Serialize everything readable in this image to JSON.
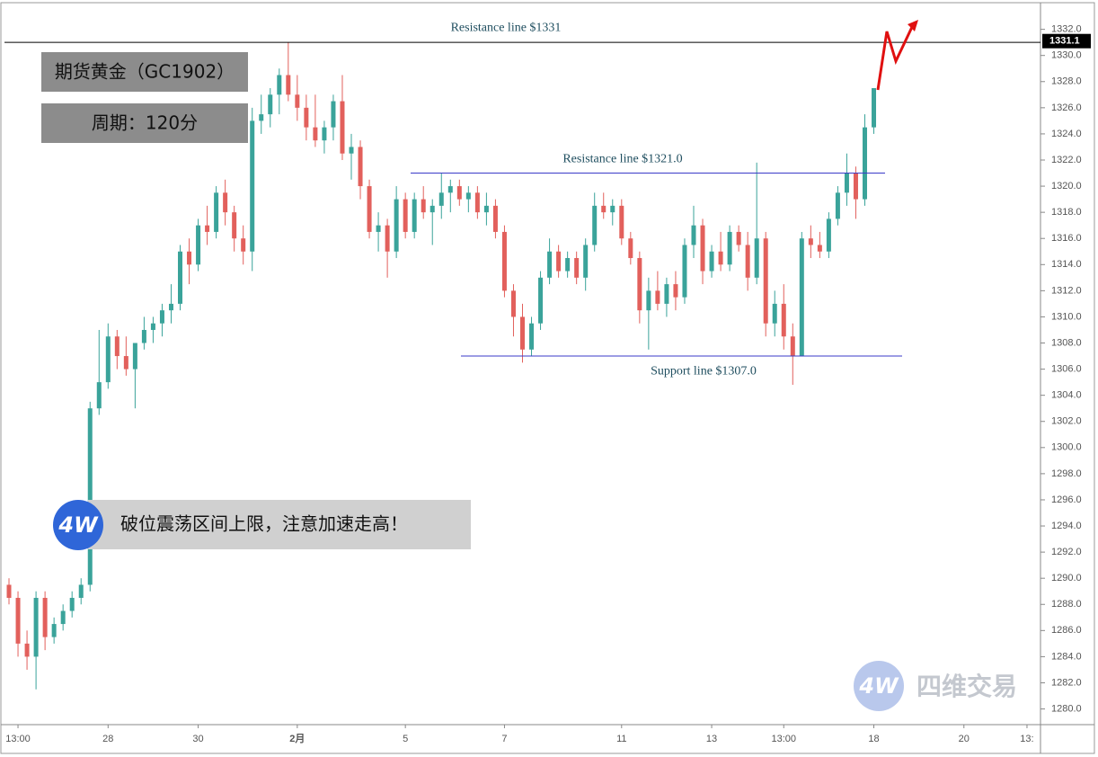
{
  "title": "期货黄金（GC1902）",
  "subtitle": "周期：120分",
  "annotation": "破位震荡区间上限，注意加速走高！",
  "logo": "4W",
  "watermark": "四维交易",
  "chart_data": {
    "type": "candlestick",
    "categories": [
      null,
      "13:00",
      null,
      null,
      null,
      null,
      null,
      null,
      null,
      null,
      null,
      "28",
      null,
      null,
      null,
      null,
      null,
      null,
      null,
      null,
      null,
      "30",
      null,
      null,
      null,
      null,
      null,
      null,
      null,
      null,
      null,
      null,
      "2月",
      null,
      null,
      null,
      null,
      null,
      null,
      null,
      null,
      null,
      null,
      null,
      "5",
      null,
      null,
      null,
      null,
      null,
      null,
      null,
      null,
      null,
      null,
      "7",
      null,
      null,
      null,
      null,
      null,
      null,
      null,
      null,
      null,
      null,
      null,
      null,
      "11",
      null,
      null,
      null,
      null,
      null,
      null,
      null,
      null,
      null,
      "13",
      null,
      null,
      null,
      null,
      null,
      null,
      null,
      "13:00",
      null,
      null,
      null,
      null,
      null,
      null,
      null,
      null,
      null,
      "18",
      null,
      null,
      null,
      null,
      null,
      null,
      null,
      null,
      null,
      "20",
      null,
      null,
      null,
      null,
      null,
      null,
      "13:",
      null
    ],
    "open": [
      1289.5,
      1288.5,
      1285,
      1284,
      1288.5,
      1285.5,
      1286.5,
      1287.5,
      1288.5,
      1289.5,
      1303,
      1305,
      1308.5,
      1307,
      1306,
      1308,
      1309,
      1309.5,
      1310.5,
      1311,
      1315,
      1314,
      1317,
      1316.5,
      1319.5,
      1318,
      1316,
      1315,
      1325,
      1325.5,
      1327,
      1328.5,
      1327,
      1326,
      1324.5,
      1323.5,
      1324.5,
      1326.5,
      1322.5,
      1323,
      1320,
      1316.5,
      1317,
      1315,
      1319,
      1316.5,
      1319,
      1318,
      1318.5,
      1319.5,
      1320,
      1319,
      1319.5,
      1318,
      1318.5,
      1316.5,
      1312,
      1310,
      1307.5,
      1309.5,
      1313,
      1315,
      1313.5,
      1314.5,
      1313,
      1315.5,
      1318.5,
      1318,
      1318.5,
      1316,
      1314.5,
      1310.5,
      1312,
      1311,
      1312.5,
      1311.5,
      1315.5,
      1317,
      1313.5,
      1315,
      1314,
      1316.5,
      1315.5,
      1313,
      1316,
      1309.5,
      1311,
      1308.5,
      1307,
      1316,
      1315.5,
      1315,
      1317.5,
      1319.5,
      1321,
      1319,
      1324.5,
      null,
      null,
      null,
      null,
      null,
      null,
      null,
      null,
      null,
      null,
      null,
      null,
      null,
      null,
      null,
      null,
      null,
      null
    ],
    "high": [
      1290,
      1289,
      1286,
      1289,
      1289,
      1287,
      1288,
      1289,
      1290,
      1303.5,
      1309,
      1309.5,
      1309,
      1308.5,
      1308,
      1310,
      1310,
      1311,
      1312.5,
      1315.5,
      1316,
      1317.5,
      1318.5,
      1320,
      1320.5,
      1318.5,
      1317,
      1326,
      1327,
      1327.5,
      1329,
      1331,
      1328.5,
      1327,
      1327,
      1325,
      1327,
      1328.5,
      1324,
      1323.5,
      1320.5,
      1318,
      1317.5,
      1320,
      1319.5,
      1319.5,
      1320,
      1319,
      1321,
      1320.5,
      1320.5,
      1320,
      1320,
      1319.5,
      1319,
      1317,
      1312.5,
      1311,
      1310,
      1313.5,
      1316,
      1315.5,
      1315,
      1315,
      1316,
      1319.5,
      1319.5,
      1319,
      1319,
      1316.5,
      1315,
      1313,
      1313.5,
      1313,
      1313.5,
      1316,
      1318.5,
      1317.5,
      1315.5,
      1316.5,
      1317,
      1317,
      1316.5,
      1321.8,
      1316.5,
      1312,
      1312.5,
      1309.5,
      1316.5,
      1317,
      1316.5,
      1318,
      1320,
      1322.5,
      1321.5,
      1325.5,
      1327.5,
      null,
      null,
      null,
      null,
      null,
      null,
      null,
      null,
      null,
      null,
      null,
      null,
      null,
      null,
      null,
      null,
      null,
      null
    ],
    "low": [
      1288,
      1284,
      1283,
      1281.5,
      1284.5,
      1285,
      1286,
      1287,
      1288,
      1289,
      1302.5,
      1304.5,
      1306,
      1305.5,
      1303,
      1307.5,
      1308,
      1308.5,
      1309.5,
      1310.5,
      1312.5,
      1313.5,
      1315.5,
      1316,
      1317,
      1315,
      1314,
      1313.5,
      1324,
      1324.5,
      1325.5,
      1326.5,
      1325,
      1323.5,
      1323,
      1322.5,
      1323.5,
      1322,
      1320.5,
      1319,
      1316,
      1315,
      1313,
      1314.5,
      1316,
      1316,
      1317.5,
      1315.5,
      1317.5,
      1318,
      1318.5,
      1318,
      1317.5,
      1317,
      1316,
      1311.5,
      1308.5,
      1306.5,
      1307,
      1309,
      1312.5,
      1313,
      1313,
      1312.5,
      1312,
      1315,
      1317.5,
      1317,
      1315.5,
      1314,
      1309.5,
      1307.5,
      1310.5,
      1310,
      1310.5,
      1311,
      1314.5,
      1312.5,
      1313,
      1313.5,
      1313.5,
      1315,
      1312,
      1312.5,
      1308.5,
      1308.5,
      1307.5,
      1304.8,
      1307,
      1314.5,
      1314.5,
      1314.5,
      1317,
      1318.5,
      1317.5,
      1318.5,
      1324,
      null,
      null,
      null,
      null,
      null,
      null,
      null,
      null,
      null,
      null,
      null,
      null,
      null,
      null,
      null,
      null,
      null,
      null
    ],
    "close": [
      1288.5,
      1285,
      1284,
      1288.5,
      1285.5,
      1286.5,
      1287.5,
      1288.5,
      1289.5,
      1303,
      1305,
      1308.5,
      1307,
      1306,
      1308,
      1309,
      1309.5,
      1310.5,
      1311,
      1315,
      1314,
      1317,
      1316.5,
      1319.5,
      1318,
      1316,
      1315,
      1325,
      1325.5,
      1327,
      1328.5,
      1327,
      1326,
      1324.5,
      1323.5,
      1324.5,
      1326.5,
      1322.5,
      1323,
      1320,
      1316.5,
      1317,
      1315,
      1319,
      1316.5,
      1319,
      1318,
      1318.5,
      1319.5,
      1320,
      1319,
      1319.5,
      1318,
      1318.5,
      1316.5,
      1312,
      1310,
      1307.5,
      1309.5,
      1313,
      1315,
      1313.5,
      1314.5,
      1313,
      1315.5,
      1318.5,
      1318,
      1318.5,
      1316,
      1314.5,
      1310.5,
      1312,
      1311,
      1312.5,
      1311.5,
      1315.5,
      1317,
      1313.5,
      1315,
      1314,
      1316.5,
      1315.5,
      1313,
      1316,
      1309.5,
      1311,
      1308.5,
      1307,
      1316,
      1315.5,
      1315,
      1317.5,
      1319.5,
      1321,
      1319,
      1324.5,
      1327.5,
      null,
      null,
      null,
      null,
      null,
      null,
      null,
      null,
      null,
      null,
      null,
      null,
      null,
      null,
      null,
      null,
      null,
      null
    ],
    "up_color": "#3aa39a",
    "down_color": "#e2605c",
    "ylim": [
      1278.8,
      1333.9
    ],
    "yticks": [
      {
        "value": 1280,
        "label": "1280.0"
      },
      {
        "value": 1282,
        "label": "1282.0"
      },
      {
        "value": 1284,
        "label": "1284.0"
      },
      {
        "value": 1286,
        "label": "1286.0"
      },
      {
        "value": 1288,
        "label": "1288.0"
      },
      {
        "value": 1290,
        "label": "1290.0"
      },
      {
        "value": 1292,
        "label": "1292.0"
      },
      {
        "value": 1294,
        "label": "1294.0"
      },
      {
        "value": 1296,
        "label": "1296.0"
      },
      {
        "value": 1298,
        "label": "1298.0"
      },
      {
        "value": 1300,
        "label": "1300.0"
      },
      {
        "value": 1302,
        "label": "1302.0"
      },
      {
        "value": 1304,
        "label": "1304.0"
      },
      {
        "value": 1306,
        "label": "1306.0"
      },
      {
        "value": 1308,
        "label": "1308.0"
      },
      {
        "value": 1310,
        "label": "1310.0"
      },
      {
        "value": 1312,
        "label": "1312.0"
      },
      {
        "value": 1314,
        "label": "1314.0"
      },
      {
        "value": 1316,
        "label": "1316.0"
      },
      {
        "value": 1318,
        "label": "1318.0"
      },
      {
        "value": 1320,
        "label": "1320.0"
      },
      {
        "value": 1322,
        "label": "1322.0"
      },
      {
        "value": 1324,
        "label": "1324.0"
      },
      {
        "value": 1326,
        "label": "1326.0"
      },
      {
        "value": 1328,
        "label": "1328.0"
      },
      {
        "value": 1330,
        "label": "1330.0"
      },
      {
        "value": 1332,
        "label": "1332.0"
      }
    ],
    "price_lines": [
      {
        "label": "Resistance line $1331",
        "value": 1331,
        "color": "#000000"
      },
      {
        "label": "Resistance line $1321.0",
        "value": 1321,
        "color": "#3b3bc8"
      },
      {
        "label": "Support line $1307.0",
        "value": 1307,
        "color": "#3b3bc8"
      }
    ],
    "last_price": 1331.1
  }
}
